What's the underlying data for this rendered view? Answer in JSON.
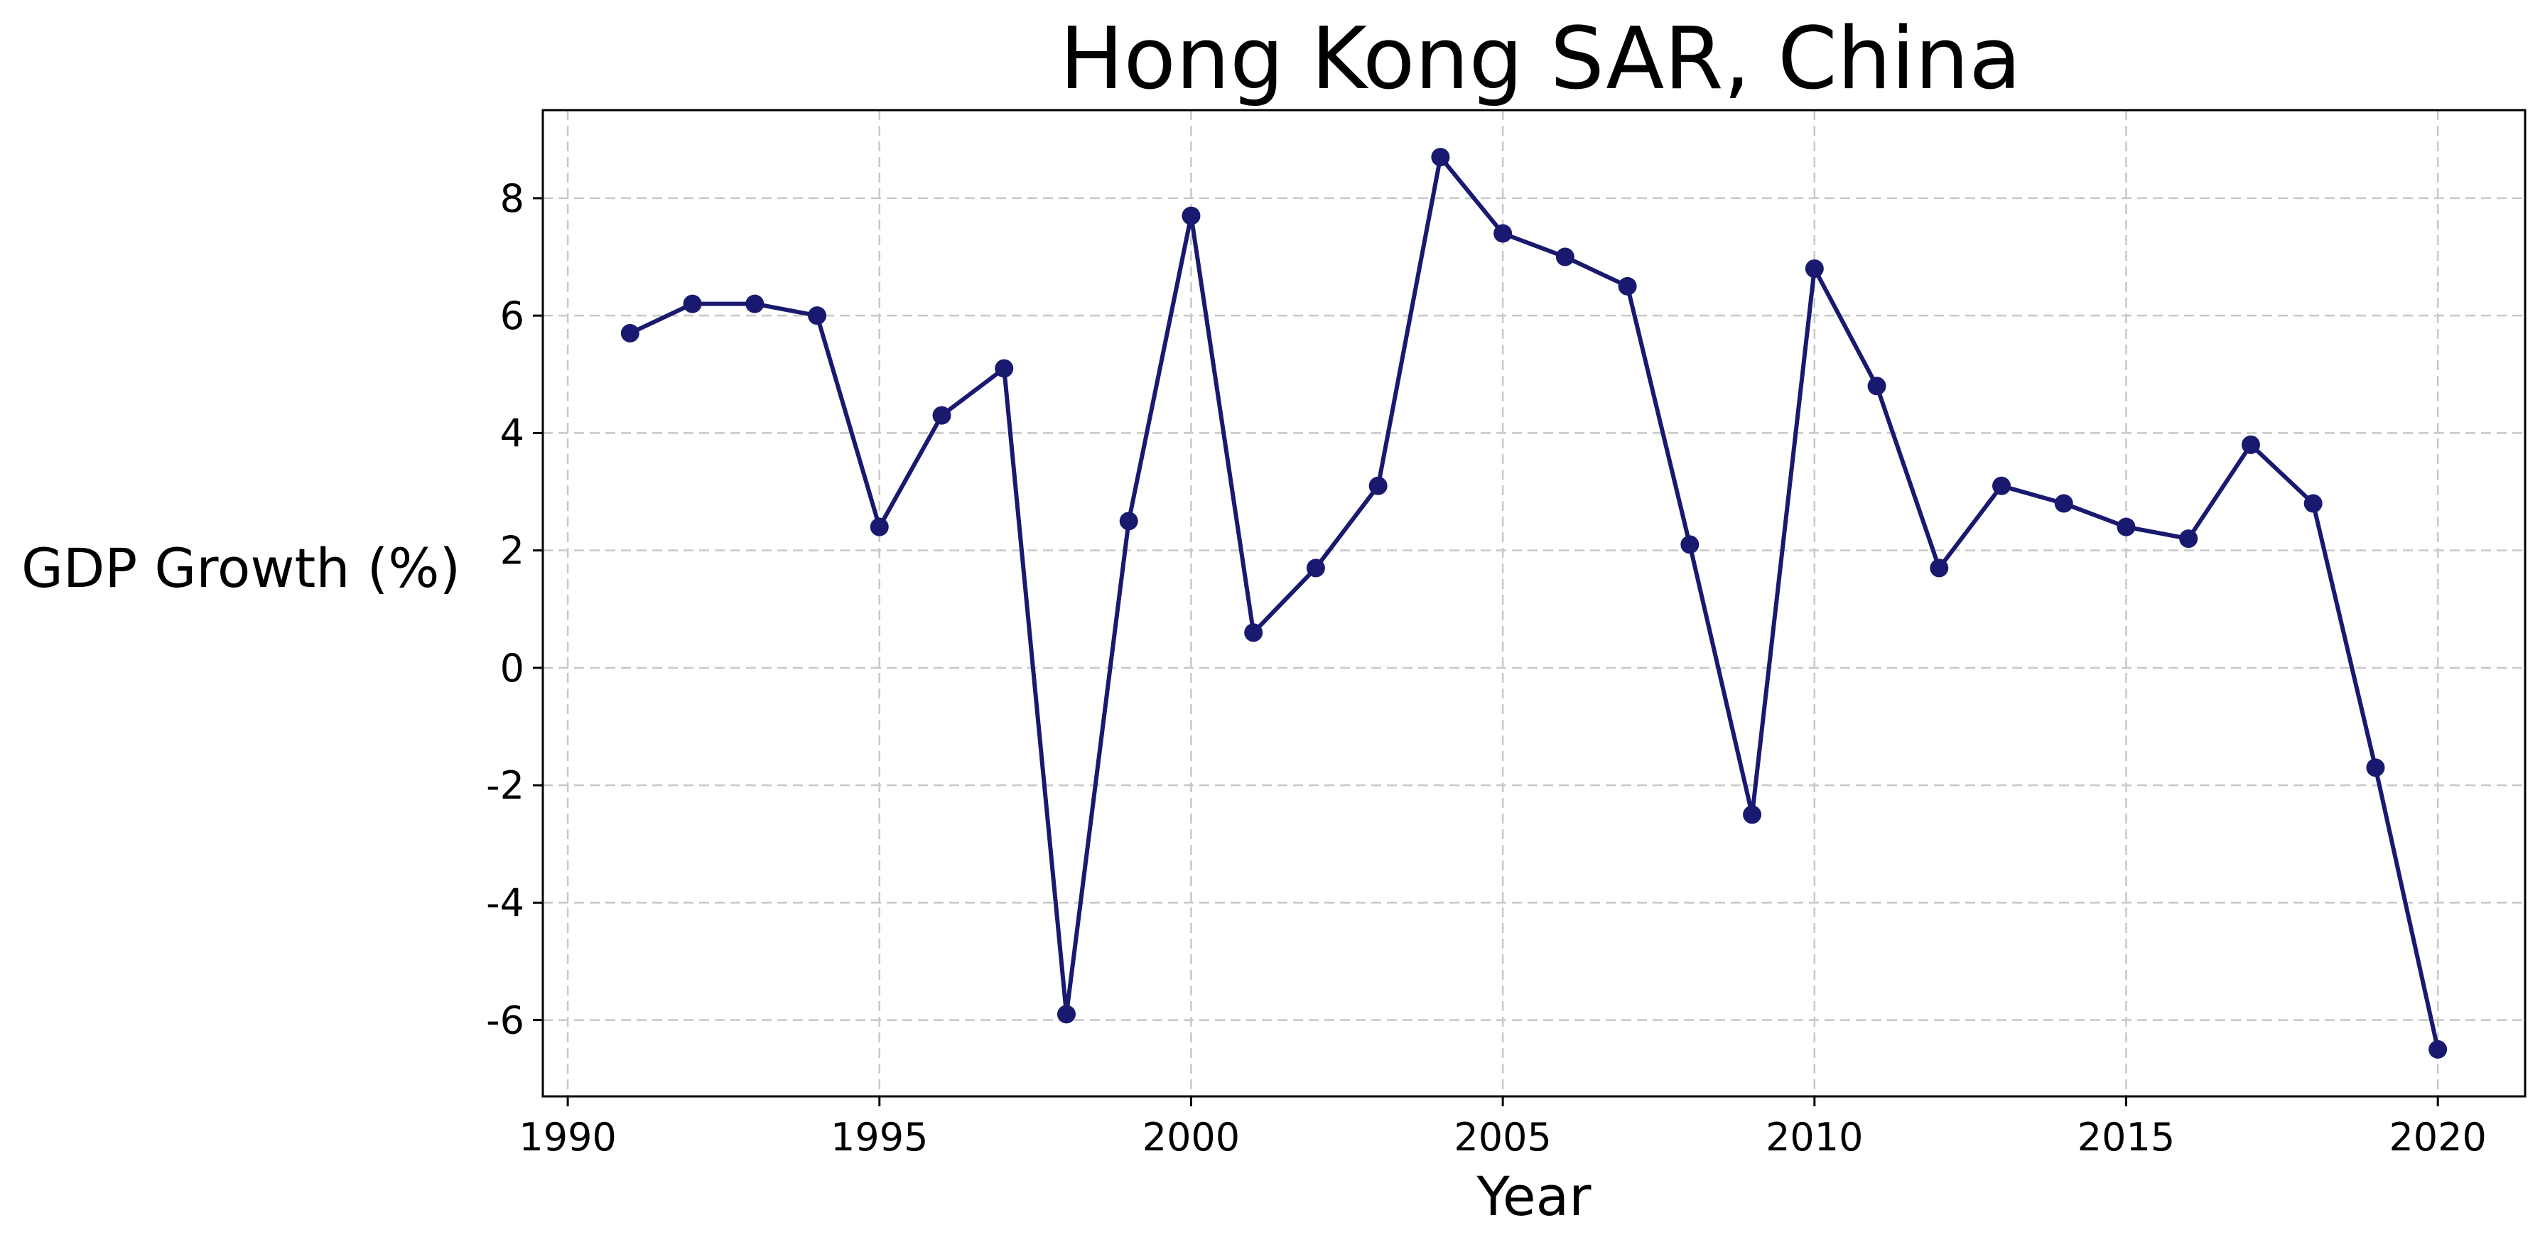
{
  "chart_data": {
    "type": "line",
    "title": "Hong Kong SAR, China",
    "xlabel": "Year",
    "ylabel": "GDP Growth (%)",
    "xlim": [
      1989.6,
      2021.4
    ],
    "ylim": [
      -7.3,
      9.5
    ],
    "xticks": [
      1990,
      1995,
      2000,
      2005,
      2010,
      2015,
      2020
    ],
    "yticks": [
      -6,
      -4,
      -2,
      0,
      2,
      4,
      6,
      8
    ],
    "ytick_labels": [
      "-6",
      "-4",
      "-2",
      "0",
      "2",
      "4",
      "6",
      "8"
    ],
    "grid": true,
    "series": [
      {
        "color": "#191970",
        "marker": "circle",
        "x": [
          1991,
          1992,
          1993,
          1994,
          1995,
          1996,
          1997,
          1998,
          1999,
          2000,
          2001,
          2002,
          2003,
          2004,
          2005,
          2006,
          2007,
          2008,
          2009,
          2010,
          2011,
          2012,
          2013,
          2014,
          2015,
          2016,
          2017,
          2018,
          2019,
          2020
        ],
        "values": [
          5.7,
          6.2,
          6.2,
          6.0,
          2.4,
          4.3,
          5.1,
          -5.9,
          2.5,
          7.7,
          0.6,
          1.7,
          3.1,
          8.7,
          7.4,
          7.0,
          6.5,
          2.1,
          -2.5,
          6.8,
          4.8,
          1.7,
          3.1,
          2.8,
          2.4,
          2.2,
          3.8,
          2.8,
          -1.7,
          -6.5
        ]
      }
    ]
  }
}
